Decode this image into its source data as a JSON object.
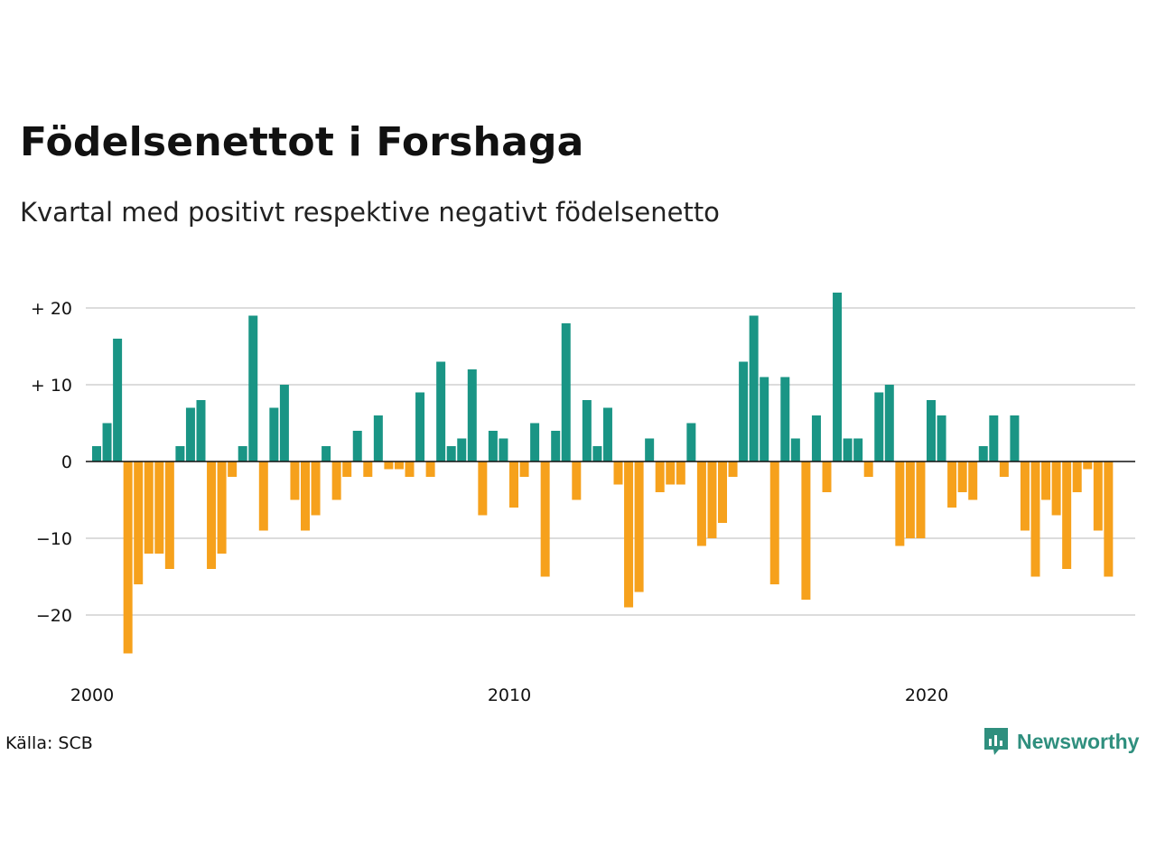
{
  "title": "Födelsenettot i Forshaga",
  "subtitle": "Kvartal med positivt respektive negativt födelsenetto",
  "source": "Källa: SCB",
  "brand": {
    "name": "Newsworthy",
    "icon": "newsworthy-logo-icon"
  },
  "colors": {
    "positive": "#1a9585",
    "negative": "#f6a11c",
    "grid": "#dcdcdc",
    "zero": "#111111"
  },
  "chart_data": {
    "type": "bar",
    "xlabel": "",
    "ylabel": "",
    "ylim": [
      -25,
      22
    ],
    "yticks": [
      {
        "value": 20,
        "label": "+ 20"
      },
      {
        "value": 10,
        "label": "+ 10"
      },
      {
        "value": 0,
        "label": "0"
      },
      {
        "value": -10,
        "label": "−10"
      },
      {
        "value": -20,
        "label": "−20"
      }
    ],
    "xticks": [
      {
        "year": 2000,
        "label": "2000"
      },
      {
        "year": 2010,
        "label": "2010"
      },
      {
        "year": 2020,
        "label": "2020"
      }
    ],
    "start": "2000 Q1",
    "frequency": "quarter",
    "grid": true,
    "legend": "none",
    "values": [
      2,
      5,
      16,
      -25,
      -16,
      -12,
      -12,
      -14,
      2,
      7,
      8,
      -14,
      -12,
      -2,
      2,
      19,
      -9,
      7,
      10,
      -5,
      -9,
      -7,
      2,
      -5,
      -2,
      4,
      -2,
      6,
      -1,
      -1,
      -2,
      9,
      -2,
      13,
      2,
      3,
      12,
      -7,
      4,
      3,
      -6,
      -2,
      5,
      -15,
      4,
      18,
      -5,
      8,
      2,
      7,
      -3,
      -19,
      -17,
      3,
      -4,
      -3,
      -3,
      5,
      -11,
      -10,
      -8,
      -2,
      13,
      19,
      11,
      -16,
      11,
      3,
      -18,
      6,
      -4,
      22,
      3,
      3,
      -2,
      9,
      10,
      -11,
      -10,
      -10,
      8,
      6,
      -6,
      -4,
      -5,
      2,
      6,
      -2,
      6,
      -9,
      -15,
      -5,
      -7,
      -14,
      -4,
      -1,
      -9,
      -15
    ]
  }
}
